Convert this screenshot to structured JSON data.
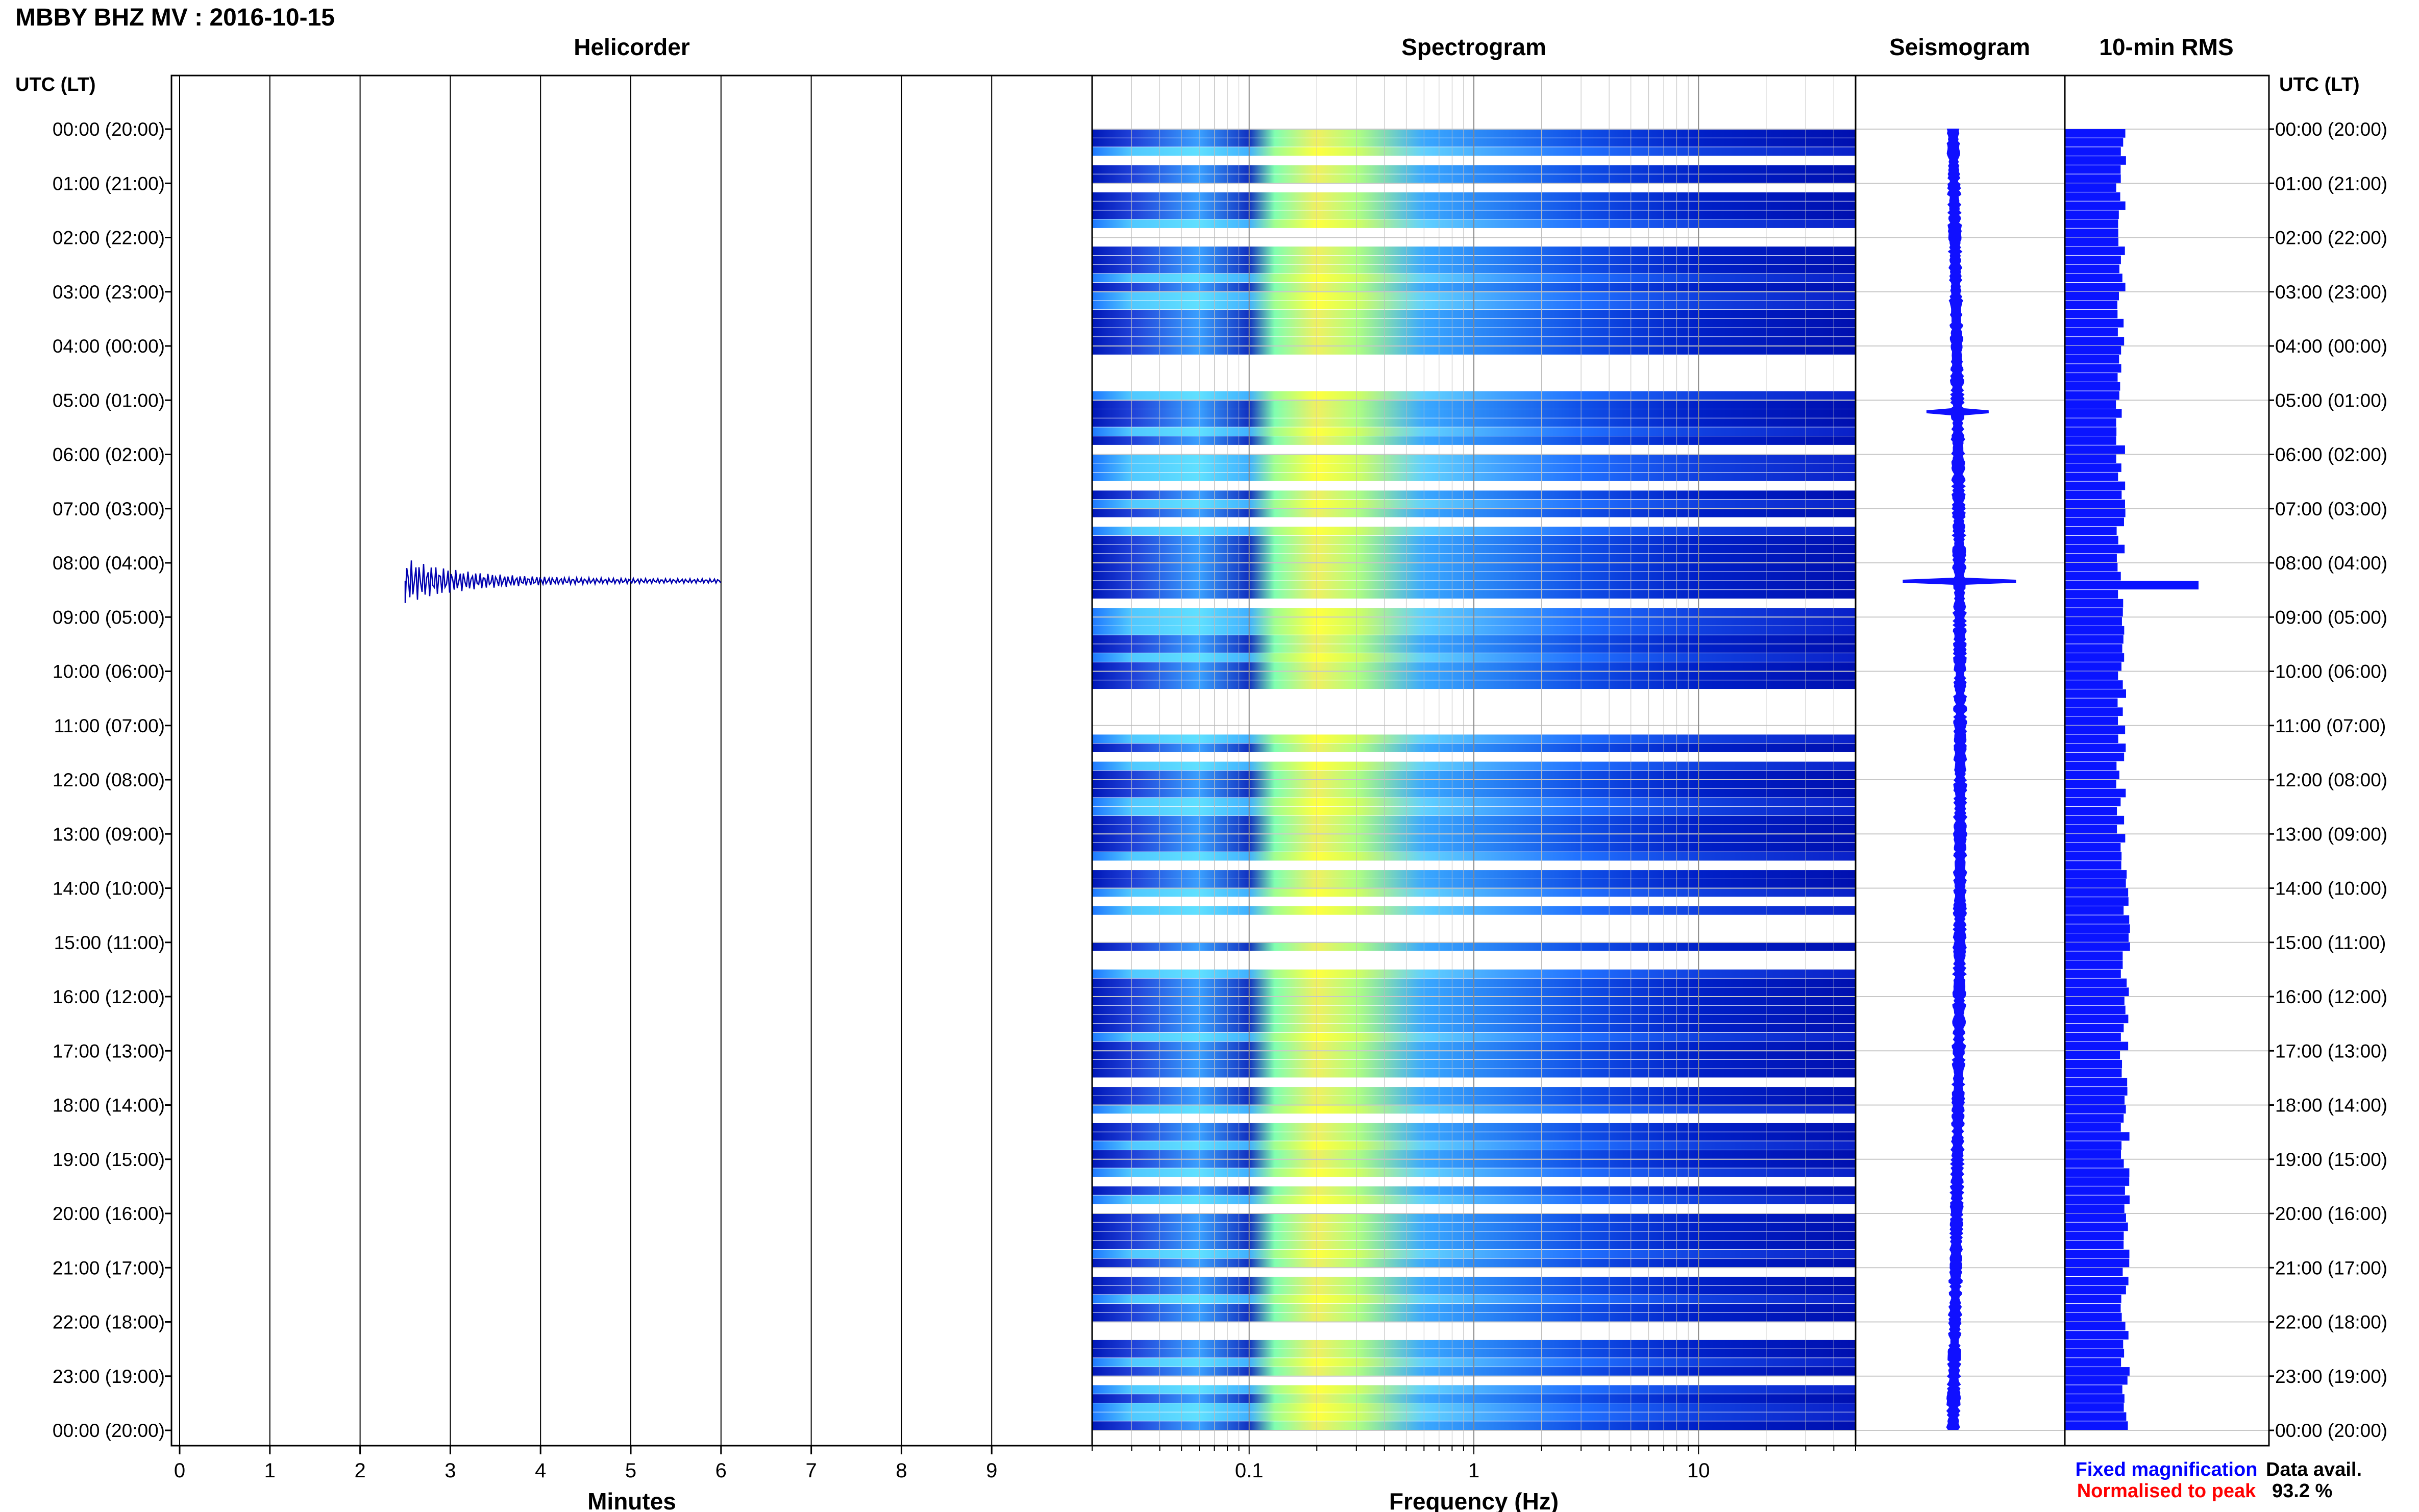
{
  "header": {
    "title": "MBBY BHZ MV : 2016-10-15",
    "left_axis_label": "UTC (LT)",
    "right_axis_label": "UTC (LT)"
  },
  "panels": {
    "helicorder": "Helicorder",
    "spectrogram": "Spectrogram",
    "seismogram": "Seismogram",
    "rms": "10-min RMS"
  },
  "footer": {
    "xlabel_minutes": "Minutes",
    "xlabel_frequency": "Frequency (Hz)",
    "legend_fixed": "Fixed magnification",
    "legend_normalised": "Normalised to peak",
    "data_avail_label": "Data avail.",
    "data_avail_value": "93.2 %"
  },
  "colors": {
    "trace_black": "#000000",
    "trace_red": "#b00000",
    "trace_blue": "#0000b0",
    "trace_green": "#007000",
    "seismogram": "#1010ff",
    "rms_bar": "#0a14ff",
    "legend_fixed": "#0000ff",
    "legend_normalised": "#ff0000"
  },
  "chart_data": {
    "type": "helicorder",
    "time_labels": [
      "00:00 (20:00)",
      "01:00 (21:00)",
      "02:00 (22:00)",
      "03:00 (23:00)",
      "04:00 (00:00)",
      "05:00 (01:00)",
      "06:00 (02:00)",
      "07:00 (03:00)",
      "08:00 (04:00)",
      "09:00 (05:00)",
      "10:00 (06:00)",
      "11:00 (07:00)",
      "12:00 (08:00)",
      "13:00 (09:00)",
      "14:00 (10:00)",
      "15:00 (11:00)",
      "16:00 (12:00)",
      "17:00 (13:00)",
      "18:00 (14:00)",
      "19:00 (15:00)",
      "20:00 (16:00)",
      "21:00 (17:00)",
      "22:00 (18:00)",
      "23:00 (19:00)",
      "00:00 (20:00)"
    ],
    "minute_ticks": [
      "0",
      "1",
      "2",
      "3",
      "4",
      "5",
      "6",
      "7",
      "8",
      "9"
    ],
    "frequency_ticks": [
      "0.1",
      "1",
      "10"
    ],
    "frequency_range_hz": [
      0.02,
      50
    ],
    "frequency_scale": "log",
    "minutes_range": [
      0,
      10
    ],
    "rows_per_hour": 6,
    "event": {
      "time": "08:20",
      "minute": 2.5
    },
    "rms_peak": {
      "time": "08:20"
    }
  }
}
